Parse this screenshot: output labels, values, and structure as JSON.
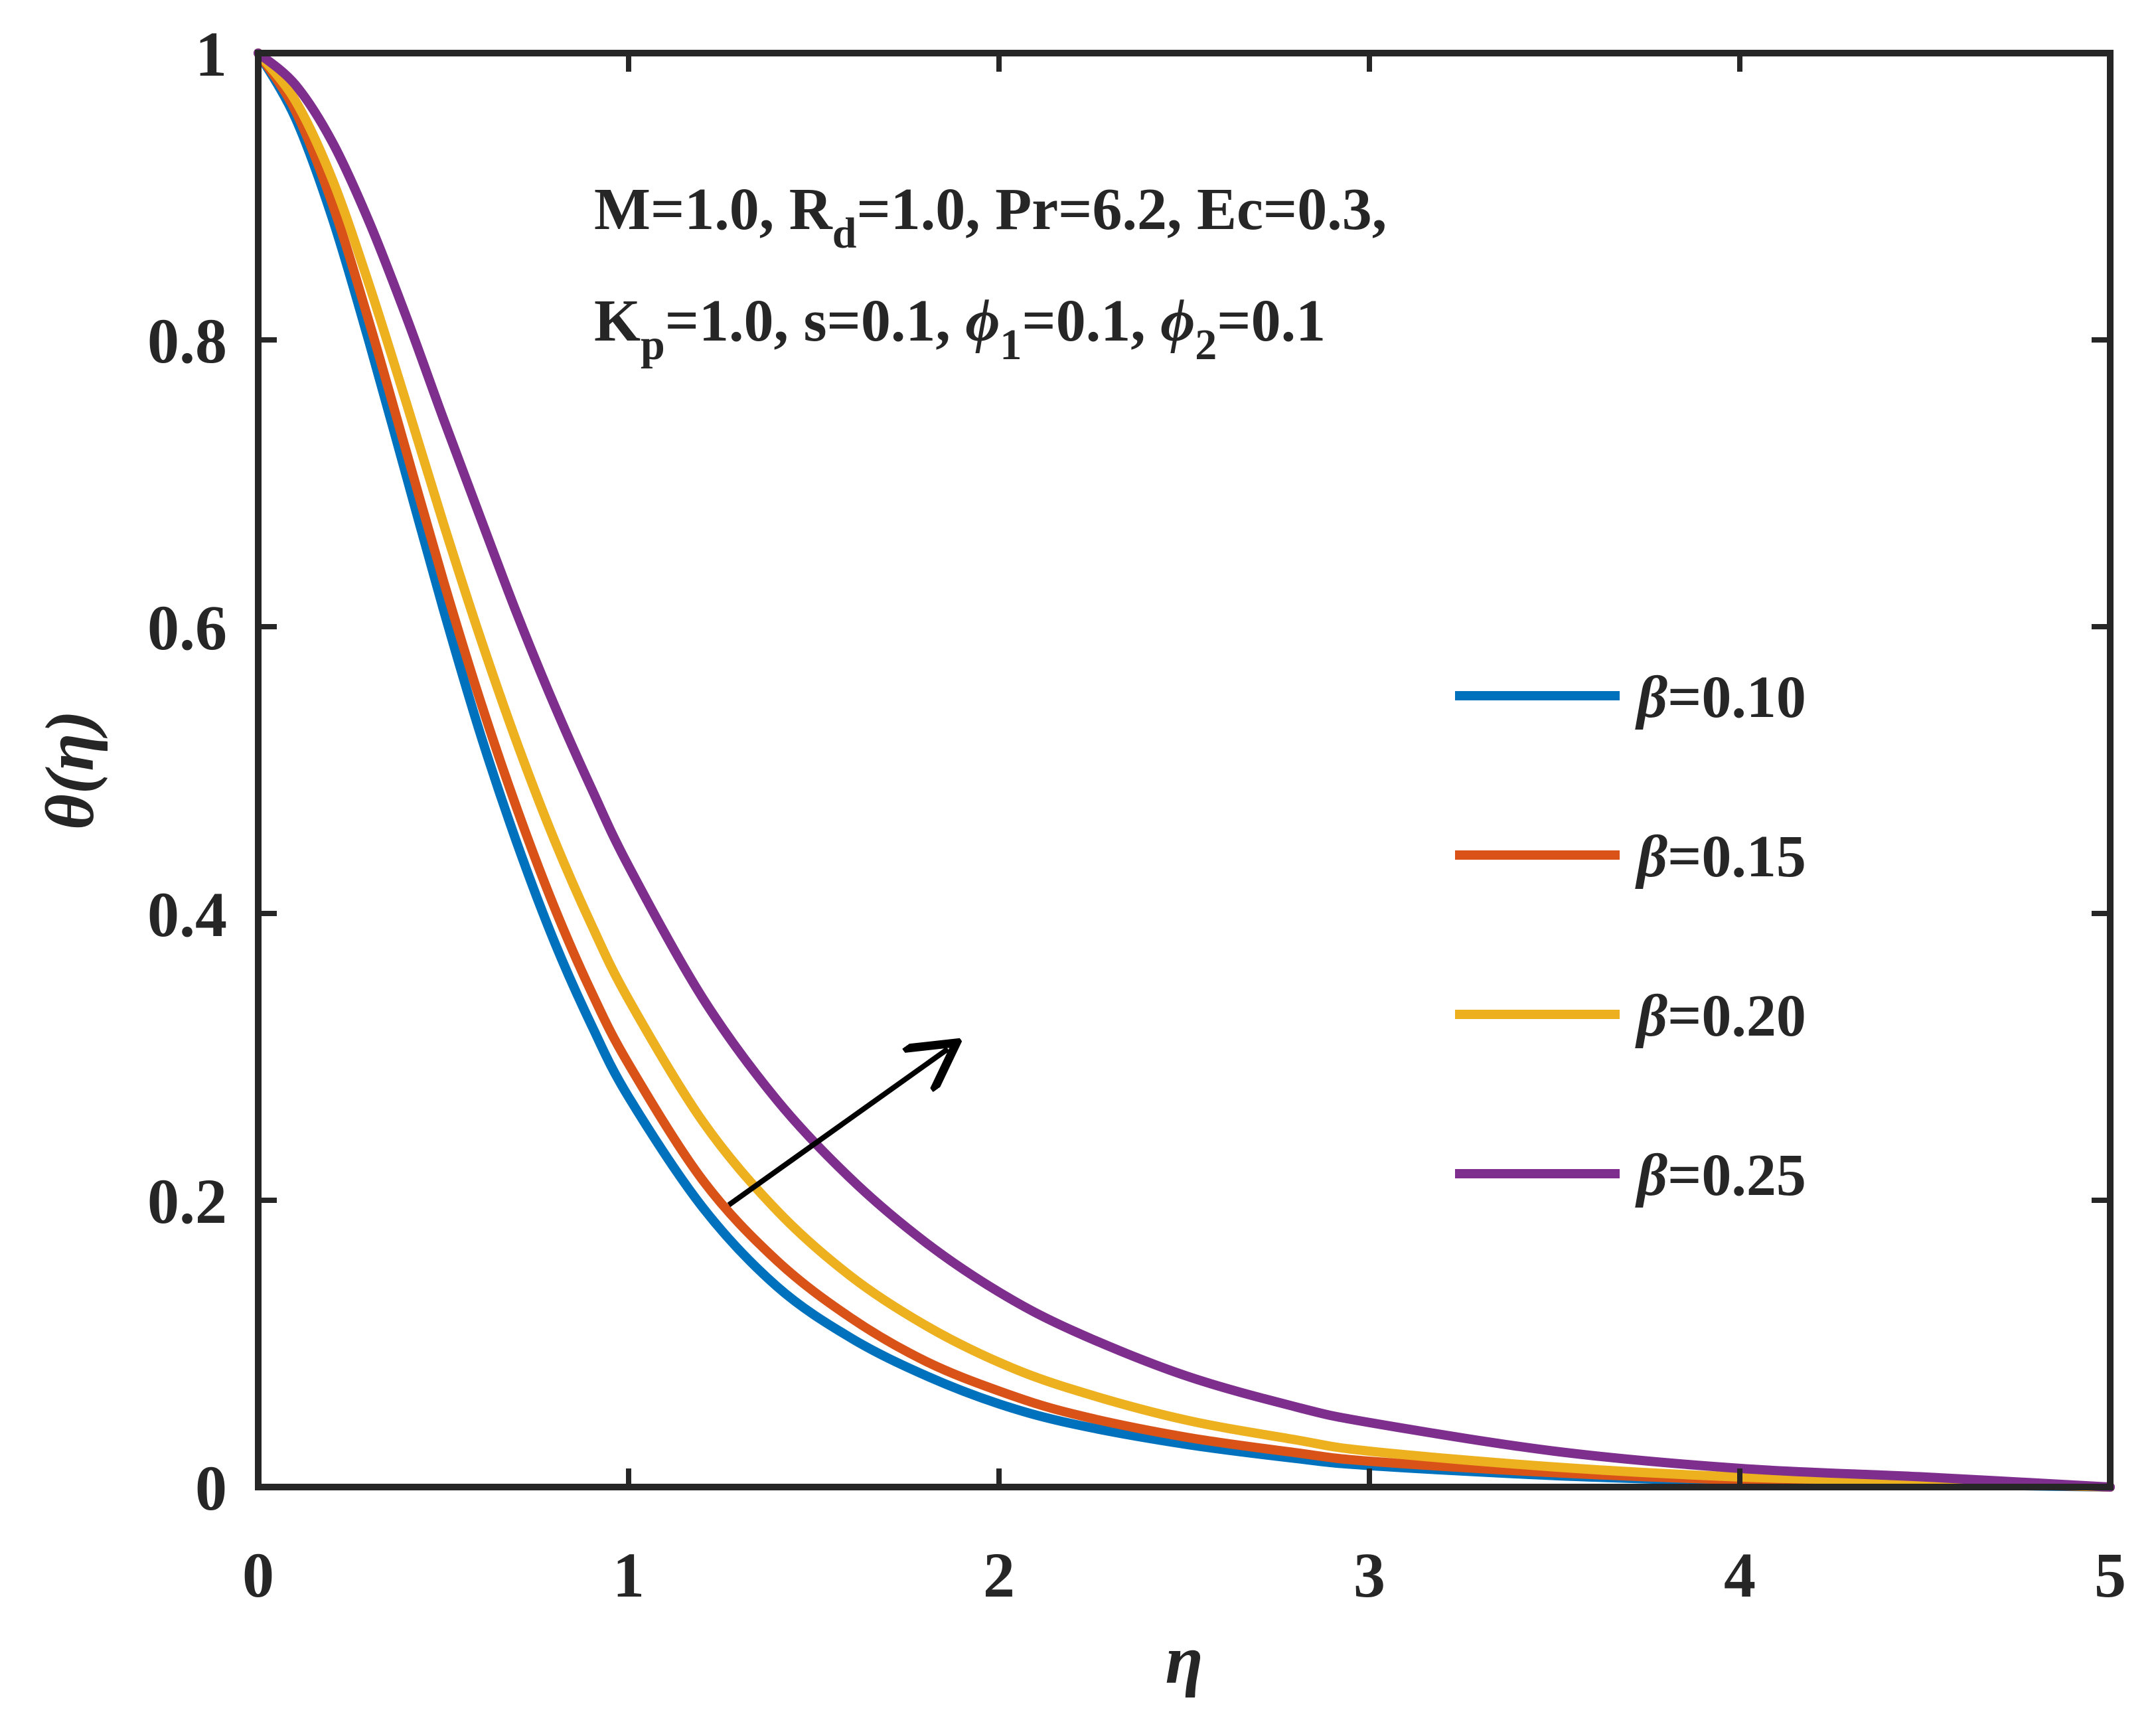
{
  "chart_data": {
    "type": "line",
    "title": "",
    "xlabel": "η",
    "ylabel": "θ(η)",
    "xlim": [
      0,
      5
    ],
    "ylim": [
      0,
      1
    ],
    "xticks": [
      "0",
      "1",
      "2",
      "3",
      "4",
      "5"
    ],
    "yticks": [
      "0",
      "0.2",
      "0.4",
      "0.6",
      "0.8",
      "1"
    ],
    "grid": false,
    "legend_position": "right",
    "x": [
      0,
      0.1,
      0.2,
      0.3,
      0.4,
      0.5,
      0.6,
      0.7,
      0.8,
      0.9,
      1.0,
      1.2,
      1.4,
      1.6,
      1.8,
      2.0,
      2.2,
      2.5,
      2.8,
      3.0,
      3.5,
      4.0,
      4.5,
      5.0
    ],
    "series": [
      {
        "name": "β=0.10",
        "color": "#0072BD",
        "values": [
          1.0,
          0.955,
          0.885,
          0.798,
          0.705,
          0.612,
          0.525,
          0.448,
          0.38,
          0.322,
          0.272,
          0.195,
          0.14,
          0.104,
          0.078,
          0.058,
          0.044,
          0.03,
          0.02,
          0.015,
          0.008,
          0.004,
          0.002,
          0.0
        ]
      },
      {
        "name": "β=0.15",
        "color": "#D95319",
        "values": [
          1.0,
          0.96,
          0.895,
          0.812,
          0.722,
          0.632,
          0.548,
          0.472,
          0.404,
          0.345,
          0.295,
          0.214,
          0.158,
          0.118,
          0.088,
          0.067,
          0.051,
          0.035,
          0.024,
          0.018,
          0.01,
          0.005,
          0.003,
          0.0
        ]
      },
      {
        "name": "β=0.20",
        "color": "#EDB120",
        "values": [
          1.0,
          0.967,
          0.912,
          0.838,
          0.756,
          0.672,
          0.592,
          0.518,
          0.451,
          0.392,
          0.34,
          0.255,
          0.193,
          0.147,
          0.113,
          0.087,
          0.068,
          0.047,
          0.033,
          0.025,
          0.014,
          0.007,
          0.004,
          0.0
        ]
      },
      {
        "name": "β=0.25",
        "color": "#7E2F8E",
        "values": [
          1.0,
          0.978,
          0.938,
          0.882,
          0.816,
          0.745,
          0.676,
          0.608,
          0.545,
          0.487,
          0.433,
          0.341,
          0.27,
          0.215,
          0.171,
          0.136,
          0.109,
          0.078,
          0.056,
          0.045,
          0.025,
          0.013,
          0.007,
          0.0
        ]
      }
    ],
    "annotations": {
      "line1": [
        "M=1.0, R",
        "d",
        "=1.0, Pr=6.2, Ec=0.3,"
      ],
      "line2": [
        "K",
        "p",
        "=1.0, s=0.1, ",
        "ϕ",
        "1",
        "=0.1, ",
        "ϕ",
        "2",
        "=0.1"
      ],
      "arrow": "increasing β"
    }
  }
}
